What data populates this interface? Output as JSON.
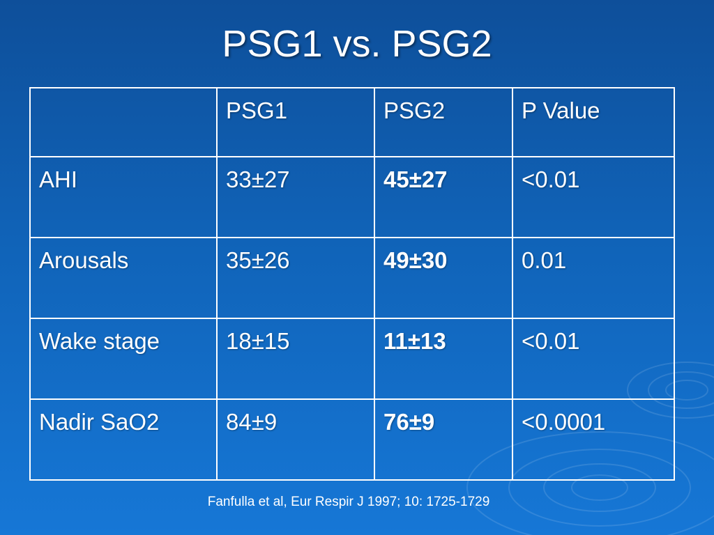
{
  "slide": {
    "title": "PSG1 vs. PSG2",
    "citation": "Fanfulla et al,  Eur Respir J 1997; 10: 1725-1729"
  },
  "table": {
    "headers": [
      "",
      "PSG1",
      "PSG2",
      "P Value"
    ],
    "rows": [
      {
        "label": "AHI",
        "psg1": "33±27",
        "psg2": "45±27",
        "p_value": "<0.01"
      },
      {
        "label": "Arousals",
        "psg1": "35±26",
        "psg2": "49±30",
        "p_value": "0.01"
      },
      {
        "label": "Wake stage",
        "psg1": "18±15",
        "psg2": "11±13",
        "p_value": "<0.01"
      },
      {
        "label": "Nadir SaO2",
        "psg1": "84±9",
        "psg2": "76±9",
        "p_value": "<0.0001"
      }
    ]
  },
  "colors": {
    "background_top": "#0e4f9a",
    "background_bottom": "#1677d6",
    "text": "#ffffff"
  }
}
